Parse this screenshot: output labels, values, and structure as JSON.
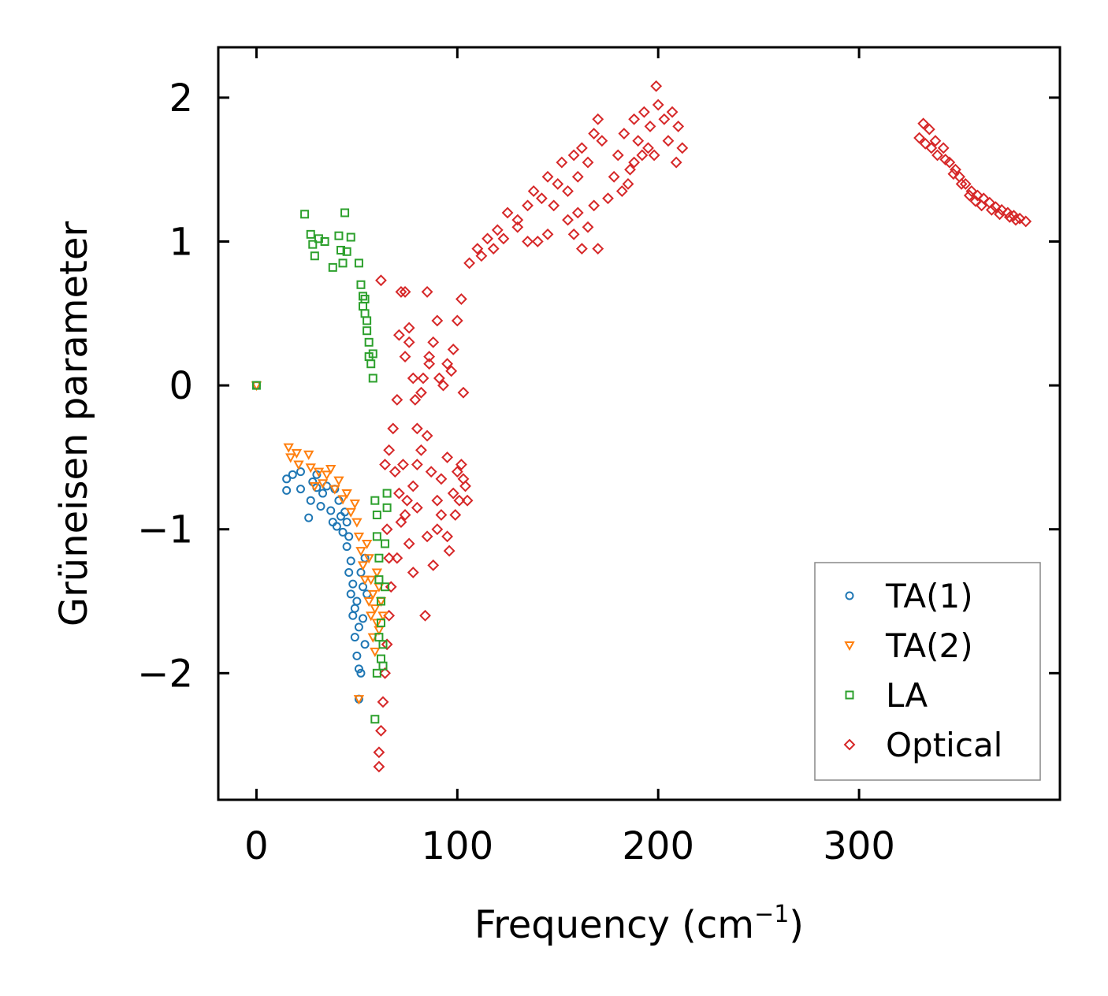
{
  "chart_data": {
    "type": "scatter",
    "title": "",
    "xlabel": "Frequency (cm",
    "xlabel_sup": "−1",
    "xlabel_end": ")",
    "ylabel": "Grüneisen parameter",
    "xlim": [
      -19,
      400
    ],
    "ylim": [
      -2.88,
      2.35
    ],
    "xticks": [
      0,
      100,
      200,
      300
    ],
    "xtick_labels": [
      "0",
      "100",
      "200",
      "300"
    ],
    "yticks": [
      -2,
      -1,
      0,
      1,
      2
    ],
    "ytick_labels": [
      "−2",
      "−1",
      "0",
      "1",
      "2"
    ],
    "grid": false,
    "legend_position": "lower-right",
    "series": [
      {
        "name": "TA(1)",
        "marker": "circle",
        "color": "#1f77b4",
        "points": [
          [
            0,
            0
          ],
          [
            15,
            -0.65
          ],
          [
            15,
            -0.73
          ],
          [
            18,
            -0.62
          ],
          [
            22,
            -0.6
          ],
          [
            22,
            -0.72
          ],
          [
            26,
            -0.92
          ],
          [
            27,
            -0.8
          ],
          [
            28,
            -0.67
          ],
          [
            30,
            -0.62
          ],
          [
            30,
            -0.71
          ],
          [
            32,
            -0.84
          ],
          [
            33,
            -0.75
          ],
          [
            35,
            -0.7
          ],
          [
            37,
            -0.87
          ],
          [
            38,
            -0.95
          ],
          [
            39,
            -0.72
          ],
          [
            40,
            -0.98
          ],
          [
            41,
            -0.8
          ],
          [
            42,
            -0.91
          ],
          [
            43,
            -1.02
          ],
          [
            44,
            -0.88
          ],
          [
            45,
            -1.12
          ],
          [
            45,
            -0.95
          ],
          [
            46,
            -1.3
          ],
          [
            46,
            -1.05
          ],
          [
            47,
            -1.22
          ],
          [
            47,
            -1.45
          ],
          [
            48,
            -1.38
          ],
          [
            48,
            -1.6
          ],
          [
            49,
            -1.55
          ],
          [
            49,
            -1.75
          ],
          [
            50,
            -1.88
          ],
          [
            50,
            -1.5
          ],
          [
            51,
            -1.97
          ],
          [
            51,
            -1.68
          ],
          [
            52,
            -2.0
          ],
          [
            52,
            -1.3
          ],
          [
            53,
            -1.62
          ],
          [
            53,
            -1.4
          ],
          [
            54,
            -1.8
          ],
          [
            54,
            -1.2
          ],
          [
            55,
            -1.45
          ],
          [
            51,
            -2.18
          ]
        ]
      },
      {
        "name": "TA(2)",
        "marker": "triangle-down",
        "color": "#ff7f0e",
        "points": [
          [
            0,
            0
          ],
          [
            16,
            -0.43
          ],
          [
            17,
            -0.5
          ],
          [
            20,
            -0.47
          ],
          [
            21,
            -0.55
          ],
          [
            26,
            -0.48
          ],
          [
            27,
            -0.57
          ],
          [
            29,
            -0.7
          ],
          [
            31,
            -0.6
          ],
          [
            33,
            -0.68
          ],
          [
            35,
            -0.62
          ],
          [
            37,
            -0.58
          ],
          [
            39,
            -0.72
          ],
          [
            41,
            -0.66
          ],
          [
            43,
            -0.79
          ],
          [
            45,
            -0.75
          ],
          [
            47,
            -0.88
          ],
          [
            49,
            -0.82
          ],
          [
            50,
            -0.95
          ],
          [
            51,
            -1.05
          ],
          [
            52,
            -1.15
          ],
          [
            53,
            -1.25
          ],
          [
            54,
            -1.35
          ],
          [
            55,
            -1.1
          ],
          [
            56,
            -1.5
          ],
          [
            56,
            -1.2
          ],
          [
            57,
            -1.35
          ],
          [
            57,
            -1.6
          ],
          [
            58,
            -1.45
          ],
          [
            58,
            -1.75
          ],
          [
            59,
            -1.55
          ],
          [
            59,
            -1.85
          ],
          [
            60,
            -1.65
          ],
          [
            60,
            -1.3
          ],
          [
            61,
            -1.4
          ],
          [
            61,
            -1.7
          ],
          [
            62,
            -1.5
          ],
          [
            63,
            -1.6
          ],
          [
            51,
            -2.18
          ]
        ]
      },
      {
        "name": "LA",
        "marker": "square",
        "color": "#2ca02c",
        "points": [
          [
            0,
            0
          ],
          [
            24,
            1.19
          ],
          [
            27,
            1.05
          ],
          [
            28,
            0.98
          ],
          [
            29,
            0.9
          ],
          [
            31,
            1.02
          ],
          [
            34,
            1.0
          ],
          [
            38,
            0.82
          ],
          [
            41,
            1.04
          ],
          [
            42,
            0.94
          ],
          [
            43,
            0.85
          ],
          [
            44,
            1.2
          ],
          [
            45,
            0.93
          ],
          [
            47,
            1.03
          ],
          [
            51,
            0.85
          ],
          [
            52,
            0.7
          ],
          [
            53,
            0.62
          ],
          [
            53,
            0.55
          ],
          [
            54,
            0.6
          ],
          [
            54,
            0.5
          ],
          [
            55,
            0.45
          ],
          [
            55,
            0.38
          ],
          [
            56,
            0.3
          ],
          [
            56,
            0.2
          ],
          [
            57,
            0.15
          ],
          [
            58,
            0.22
          ],
          [
            58,
            0.05
          ],
          [
            59,
            -0.8
          ],
          [
            60,
            -0.9
          ],
          [
            60,
            -1.05
          ],
          [
            61,
            -1.2
          ],
          [
            61,
            -1.35
          ],
          [
            62,
            -1.5
          ],
          [
            62,
            -1.65
          ],
          [
            63,
            -1.8
          ],
          [
            63,
            -1.95
          ],
          [
            64,
            -1.4
          ],
          [
            64,
            -1.1
          ],
          [
            65,
            -0.85
          ],
          [
            60,
            -2.0
          ],
          [
            61,
            -1.75
          ],
          [
            62,
            -1.9
          ],
          [
            59,
            -2.32
          ],
          [
            65,
            -0.75
          ]
        ]
      },
      {
        "name": "Optical",
        "marker": "diamond",
        "color": "#d62728",
        "points": [
          [
            62,
            0.73
          ],
          [
            71,
            0.35
          ],
          [
            72,
            0.65
          ],
          [
            74,
            0.65
          ],
          [
            76,
            0.3
          ],
          [
            78,
            0.05
          ],
          [
            70,
            -0.1
          ],
          [
            68,
            -0.3
          ],
          [
            66,
            -0.45
          ],
          [
            64,
            -0.55
          ],
          [
            65,
            -1.0
          ],
          [
            66,
            -1.2
          ],
          [
            67,
            -1.4
          ],
          [
            66,
            -1.6
          ],
          [
            65,
            -1.8
          ],
          [
            64,
            -2.0
          ],
          [
            63,
            -2.2
          ],
          [
            62,
            -2.4
          ],
          [
            61,
            -2.55
          ],
          [
            61,
            -2.65
          ],
          [
            70,
            -1.2
          ],
          [
            72,
            -0.95
          ],
          [
            75,
            -0.8
          ],
          [
            78,
            -0.7
          ],
          [
            80,
            -0.55
          ],
          [
            82,
            -0.45
          ],
          [
            85,
            -0.35
          ],
          [
            87,
            -0.6
          ],
          [
            90,
            -0.8
          ],
          [
            92,
            -0.65
          ],
          [
            95,
            -0.5
          ],
          [
            98,
            -0.75
          ],
          [
            100,
            -0.6
          ],
          [
            102,
            -0.55
          ],
          [
            104,
            -0.7
          ],
          [
            84,
            -1.6
          ],
          [
            85,
            -1.05
          ],
          [
            88,
            -1.25
          ],
          [
            90,
            -1.0
          ],
          [
            92,
            -0.9
          ],
          [
            95,
            -1.05
          ],
          [
            80,
            -0.3
          ],
          [
            83,
            0.05
          ],
          [
            86,
            0.2
          ],
          [
            88,
            0.3
          ],
          [
            90,
            0.45
          ],
          [
            93,
            0.0
          ],
          [
            95,
            0.15
          ],
          [
            98,
            0.25
          ],
          [
            100,
            0.45
          ],
          [
            102,
            0.6
          ],
          [
            85,
            0.65
          ],
          [
            106,
            0.85
          ],
          [
            110,
            0.95
          ],
          [
            115,
            1.02
          ],
          [
            120,
            1.08
          ],
          [
            125,
            1.2
          ],
          [
            130,
            1.1
          ],
          [
            135,
            1.25
          ],
          [
            138,
            1.35
          ],
          [
            142,
            1.3
          ],
          [
            145,
            1.45
          ],
          [
            148,
            1.25
          ],
          [
            150,
            1.4
          ],
          [
            152,
            1.55
          ],
          [
            155,
            1.35
          ],
          [
            158,
            1.6
          ],
          [
            160,
            1.45
          ],
          [
            162,
            1.65
          ],
          [
            165,
            1.55
          ],
          [
            168,
            1.75
          ],
          [
            170,
            1.85
          ],
          [
            172,
            1.7
          ],
          [
            155,
            1.15
          ],
          [
            158,
            1.05
          ],
          [
            160,
            1.2
          ],
          [
            162,
            0.95
          ],
          [
            165,
            1.1
          ],
          [
            168,
            1.25
          ],
          [
            170,
            0.95
          ],
          [
            175,
            1.3
          ],
          [
            178,
            1.45
          ],
          [
            180,
            1.6
          ],
          [
            183,
            1.75
          ],
          [
            186,
            1.5
          ],
          [
            188,
            1.85
          ],
          [
            190,
            1.7
          ],
          [
            193,
            1.9
          ],
          [
            196,
            1.8
          ],
          [
            199,
            2.08
          ],
          [
            200,
            1.95
          ],
          [
            203,
            1.85
          ],
          [
            205,
            1.7
          ],
          [
            207,
            1.9
          ],
          [
            210,
            1.8
          ],
          [
            212,
            1.65
          ],
          [
            209,
            1.55
          ],
          [
            182,
            1.35
          ],
          [
            185,
            1.4
          ],
          [
            188,
            1.55
          ],
          [
            192,
            1.6
          ],
          [
            195,
            1.65
          ],
          [
            198,
            1.6
          ],
          [
            145,
            1.05
          ],
          [
            140,
            1.0
          ],
          [
            135,
            1.0
          ],
          [
            130,
            1.15
          ],
          [
            123,
            1.02
          ],
          [
            118,
            0.95
          ],
          [
            112,
            0.9
          ],
          [
            74,
            0.2
          ],
          [
            76,
            0.4
          ],
          [
            79,
            -0.1
          ],
          [
            82,
            -0.05
          ],
          [
            86,
            0.15
          ],
          [
            91,
            0.05
          ],
          [
            97,
            0.1
          ],
          [
            103,
            -0.05
          ],
          [
            74,
            -0.9
          ],
          [
            76,
            -1.1
          ],
          [
            78,
            -1.3
          ],
          [
            80,
            -0.85
          ],
          [
            69,
            -0.6
          ],
          [
            71,
            -0.75
          ],
          [
            73,
            -0.55
          ],
          [
            96,
            -1.15
          ],
          [
            99,
            -0.9
          ],
          [
            101,
            -0.8
          ],
          [
            103,
            -0.65
          ],
          [
            105,
            -0.8
          ],
          [
            332,
            1.82
          ],
          [
            335,
            1.78
          ],
          [
            338,
            1.7
          ],
          [
            342,
            1.65
          ],
          [
            345,
            1.55
          ],
          [
            348,
            1.5
          ],
          [
            350,
            1.45
          ],
          [
            353,
            1.4
          ],
          [
            356,
            1.35
          ],
          [
            359,
            1.32
          ],
          [
            362,
            1.3
          ],
          [
            365,
            1.27
          ],
          [
            368,
            1.24
          ],
          [
            371,
            1.22
          ],
          [
            374,
            1.2
          ],
          [
            377,
            1.18
          ],
          [
            380,
            1.16
          ],
          [
            383,
            1.14
          ],
          [
            330,
            1.72
          ],
          [
            333,
            1.68
          ],
          [
            336,
            1.65
          ],
          [
            339,
            1.6
          ],
          [
            343,
            1.57
          ],
          [
            347,
            1.47
          ],
          [
            351,
            1.4
          ],
          [
            355,
            1.32
          ],
          [
            358,
            1.28
          ],
          [
            361,
            1.25
          ],
          [
            366,
            1.22
          ],
          [
            370,
            1.19
          ],
          [
            375,
            1.17
          ],
          [
            378,
            1.15
          ]
        ]
      }
    ]
  }
}
